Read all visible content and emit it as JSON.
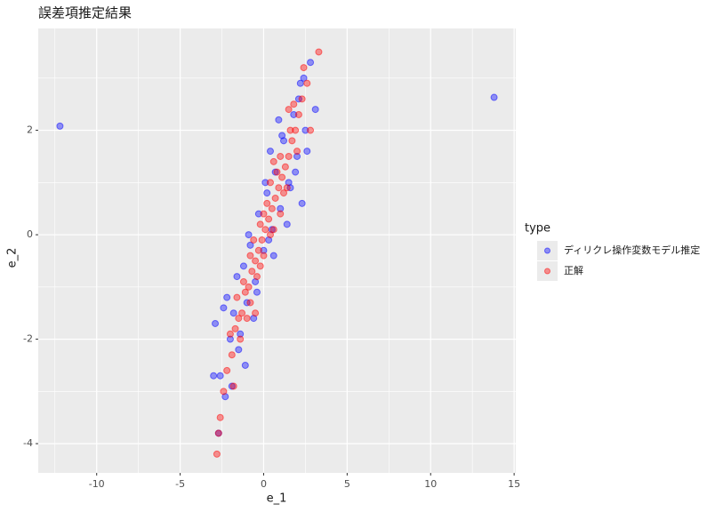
{
  "chart_data": {
    "type": "scatter",
    "title": "誤差項推定結果",
    "x_label": "e_1",
    "y_label": "e_2",
    "legend_title": "type",
    "legend_position": "right",
    "grid": true,
    "xlim": [
      -13.5,
      15.1
    ],
    "ylim": [
      -4.56,
      3.95
    ],
    "xticks": [
      -10,
      -5,
      0,
      5,
      10,
      15
    ],
    "yticks": [
      -4,
      -2,
      0,
      2
    ],
    "x_minor_ticks": [
      -12.5,
      -7.5,
      -2.5,
      2.5,
      7.5,
      12.5
    ],
    "y_minor_ticks": [
      -3,
      -1,
      1,
      3
    ],
    "series": [
      {
        "name": "ディリクレ操作変数モデル推定",
        "color": "#0000ff",
        "x": [
          -12.2,
          13.8,
          -2.6,
          -2.3,
          -2.0,
          -1.8,
          -1.5,
          -1.2,
          -1.0,
          -0.8,
          -0.5,
          -0.3,
          0,
          0.2,
          0.5,
          0.7,
          1.0,
          1.2,
          1.5,
          1.8,
          2.0,
          2.2,
          2.5,
          2.8,
          -2.9,
          -2.7,
          -2.2,
          -1.6,
          -1.1,
          -0.6,
          0.1,
          0.6,
          1.1,
          1.6,
          2.1,
          2.6,
          -1.9,
          -1.4,
          -0.9,
          -0.4,
          0.3,
          0.9,
          1.4,
          1.9,
          2.4,
          -3.0,
          3.1,
          -2.4,
          2.3,
          0.4
        ],
        "values": [
          2.08,
          2.63,
          -2.7,
          -3.1,
          -2.0,
          -1.5,
          -2.2,
          -0.6,
          -1.3,
          -0.2,
          -0.9,
          0.4,
          -0.3,
          0.8,
          0.1,
          1.2,
          0.5,
          1.8,
          1.0,
          2.3,
          1.5,
          2.9,
          2.0,
          3.3,
          -1.7,
          -3.8,
          -1.2,
          -0.8,
          -2.5,
          -1.6,
          1.0,
          -0.4,
          1.9,
          0.9,
          2.6,
          1.6,
          -2.9,
          -1.9,
          0.0,
          -1.1,
          -0.1,
          2.2,
          0.2,
          1.2,
          3.0,
          -2.7,
          2.4,
          -1.4,
          0.6,
          1.6
        ]
      },
      {
        "name": "正解",
        "color": "#ff0000",
        "x": [
          -2.6,
          -2.2,
          -1.9,
          -1.7,
          -1.5,
          -1.3,
          -1.1,
          -0.9,
          -0.7,
          -0.5,
          -0.3,
          -0.1,
          0.1,
          0.3,
          0.5,
          0.7,
          0.9,
          1.1,
          1.3,
          1.5,
          1.7,
          1.9,
          2.1,
          2.3,
          2.6,
          3.3,
          -2.8,
          -2.4,
          -2.0,
          -1.6,
          -1.2,
          -0.8,
          -0.4,
          0,
          0.4,
          0.8,
          1.2,
          1.6,
          2.0,
          2.4,
          -1.4,
          -1.0,
          -0.6,
          -0.2,
          0.2,
          0.6,
          1.0,
          1.4,
          1.8,
          -0.8,
          -0.2,
          0.4,
          1.0,
          -1.8,
          2.8,
          -2.7,
          0.0,
          0.6,
          -0.5,
          1.5
        ],
        "values": [
          -3.5,
          -2.6,
          -2.3,
          -1.8,
          -1.6,
          -1.5,
          -1.1,
          -1.0,
          -0.7,
          -0.5,
          -0.3,
          -0.1,
          0.1,
          0.3,
          0.5,
          0.7,
          0.9,
          1.1,
          1.3,
          1.5,
          1.8,
          2.0,
          2.3,
          2.6,
          2.9,
          3.5,
          -4.2,
          -3.0,
          -1.9,
          -1.2,
          -0.9,
          -0.4,
          -0.8,
          0.4,
          0.0,
          1.2,
          0.8,
          2.0,
          1.6,
          3.2,
          -2.0,
          -1.6,
          -0.1,
          -0.6,
          0.6,
          0.1,
          1.5,
          0.9,
          2.5,
          -1.3,
          0.2,
          1.0,
          0.4,
          -2.9,
          2.0,
          -3.8,
          -0.4,
          1.4,
          -1.5,
          2.4
        ]
      }
    ]
  }
}
